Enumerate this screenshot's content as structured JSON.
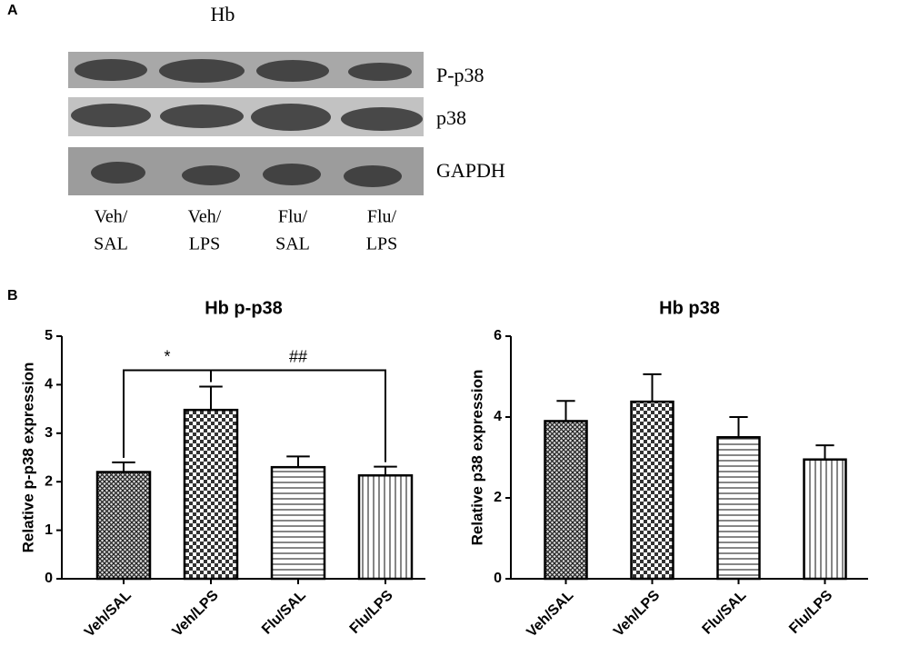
{
  "panel_a": {
    "label": "A",
    "title": "Hb",
    "blot_labels": [
      "P-p38",
      "p38",
      "GAPDH"
    ],
    "lanes": [
      [
        "Veh/",
        "SAL"
      ],
      [
        "Veh/",
        "LPS"
      ],
      [
        "Flu/",
        "SAL"
      ],
      [
        "Flu/",
        "LPS"
      ]
    ]
  },
  "panel_b": {
    "label": "B"
  },
  "chart_data": [
    {
      "type": "bar",
      "title": "Hb p-p38",
      "y_label": "Relative p-p38 expression",
      "categories": [
        "Veh/SAL",
        "Veh/LPS",
        "Flu/SAL",
        "Flu/LPS"
      ],
      "values": [
        2.2,
        3.48,
        2.3,
        2.13
      ],
      "errors": [
        0.2,
        0.48,
        0.22,
        0.18
      ],
      "patterns": [
        "crosshatch",
        "checker",
        "horizontal",
        "vertical"
      ],
      "ylim": [
        0,
        5
      ],
      "yticks": [
        0,
        1,
        2,
        3,
        4,
        5
      ],
      "annotations": [
        "*",
        "##"
      ]
    },
    {
      "type": "bar",
      "title": "Hb p38",
      "y_label": "Relative p38 expression",
      "categories": [
        "Veh/SAL",
        "Veh/LPS",
        "Flu/SAL",
        "Flu/LPS"
      ],
      "values": [
        3.9,
        4.38,
        3.5,
        2.95
      ],
      "errors": [
        0.5,
        0.68,
        0.5,
        0.35
      ],
      "patterns": [
        "crosshatch",
        "checker",
        "horizontal",
        "vertical"
      ],
      "ylim": [
        0,
        6
      ],
      "yticks": [
        0,
        2,
        4,
        6
      ]
    }
  ]
}
